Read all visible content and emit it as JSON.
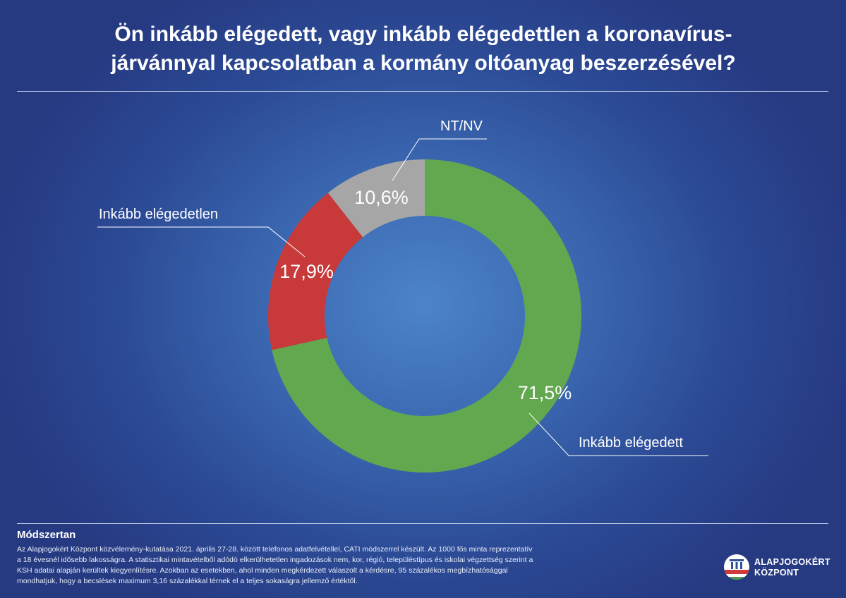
{
  "title_lines": [
    "Ön inkább elégedett, vagy inkább elégedettlen a koronavírus-",
    "járvánnyal kapcsolatban a kormány oltóanyag beszerzésével?"
  ],
  "chart_data": {
    "type": "pie",
    "donut": true,
    "slices": [
      {
        "label": "Inkább elégedett",
        "value": 71.5,
        "display": "71,5%",
        "color": "#62a84f"
      },
      {
        "label": "Inkább elégedetlen",
        "value": 17.9,
        "display": "17,9%",
        "color": "#c83a3a"
      },
      {
        "label": "NT/NV",
        "value": 10.6,
        "display": "10,6%",
        "color": "#a6a6a6"
      }
    ]
  },
  "methodology": {
    "heading": "Módszertan",
    "lines": [
      "Az Alapjogokért Központ közvélemény-kutatása 2021. április 27-28. között telefonos adatfelvétellel, CATI módszerrel készült. Az 1000 fős minta reprezentatív",
      "a 18 évesnél idősebb lakosságra. A statisztikai mintavételből adódó elkerülhetetlen ingadozások nem, kor, régió, településtípus és iskolai végzettség szerint a",
      "KSH adatai alapján kerültek kiegyenlítésre. Azokban az esetekben, ahol minden megkérdezett válaszolt a kérdésre, 95 százalékos megbízhatósággal",
      "mondhatjuk, hogy a becslések maximum 3,16 százalékkal térnek el a teljes sokaságra jellemző értéktől."
    ]
  },
  "logo": {
    "line1": "ALAPJOGOKÉRT",
    "line2": "KÖZPONT"
  }
}
